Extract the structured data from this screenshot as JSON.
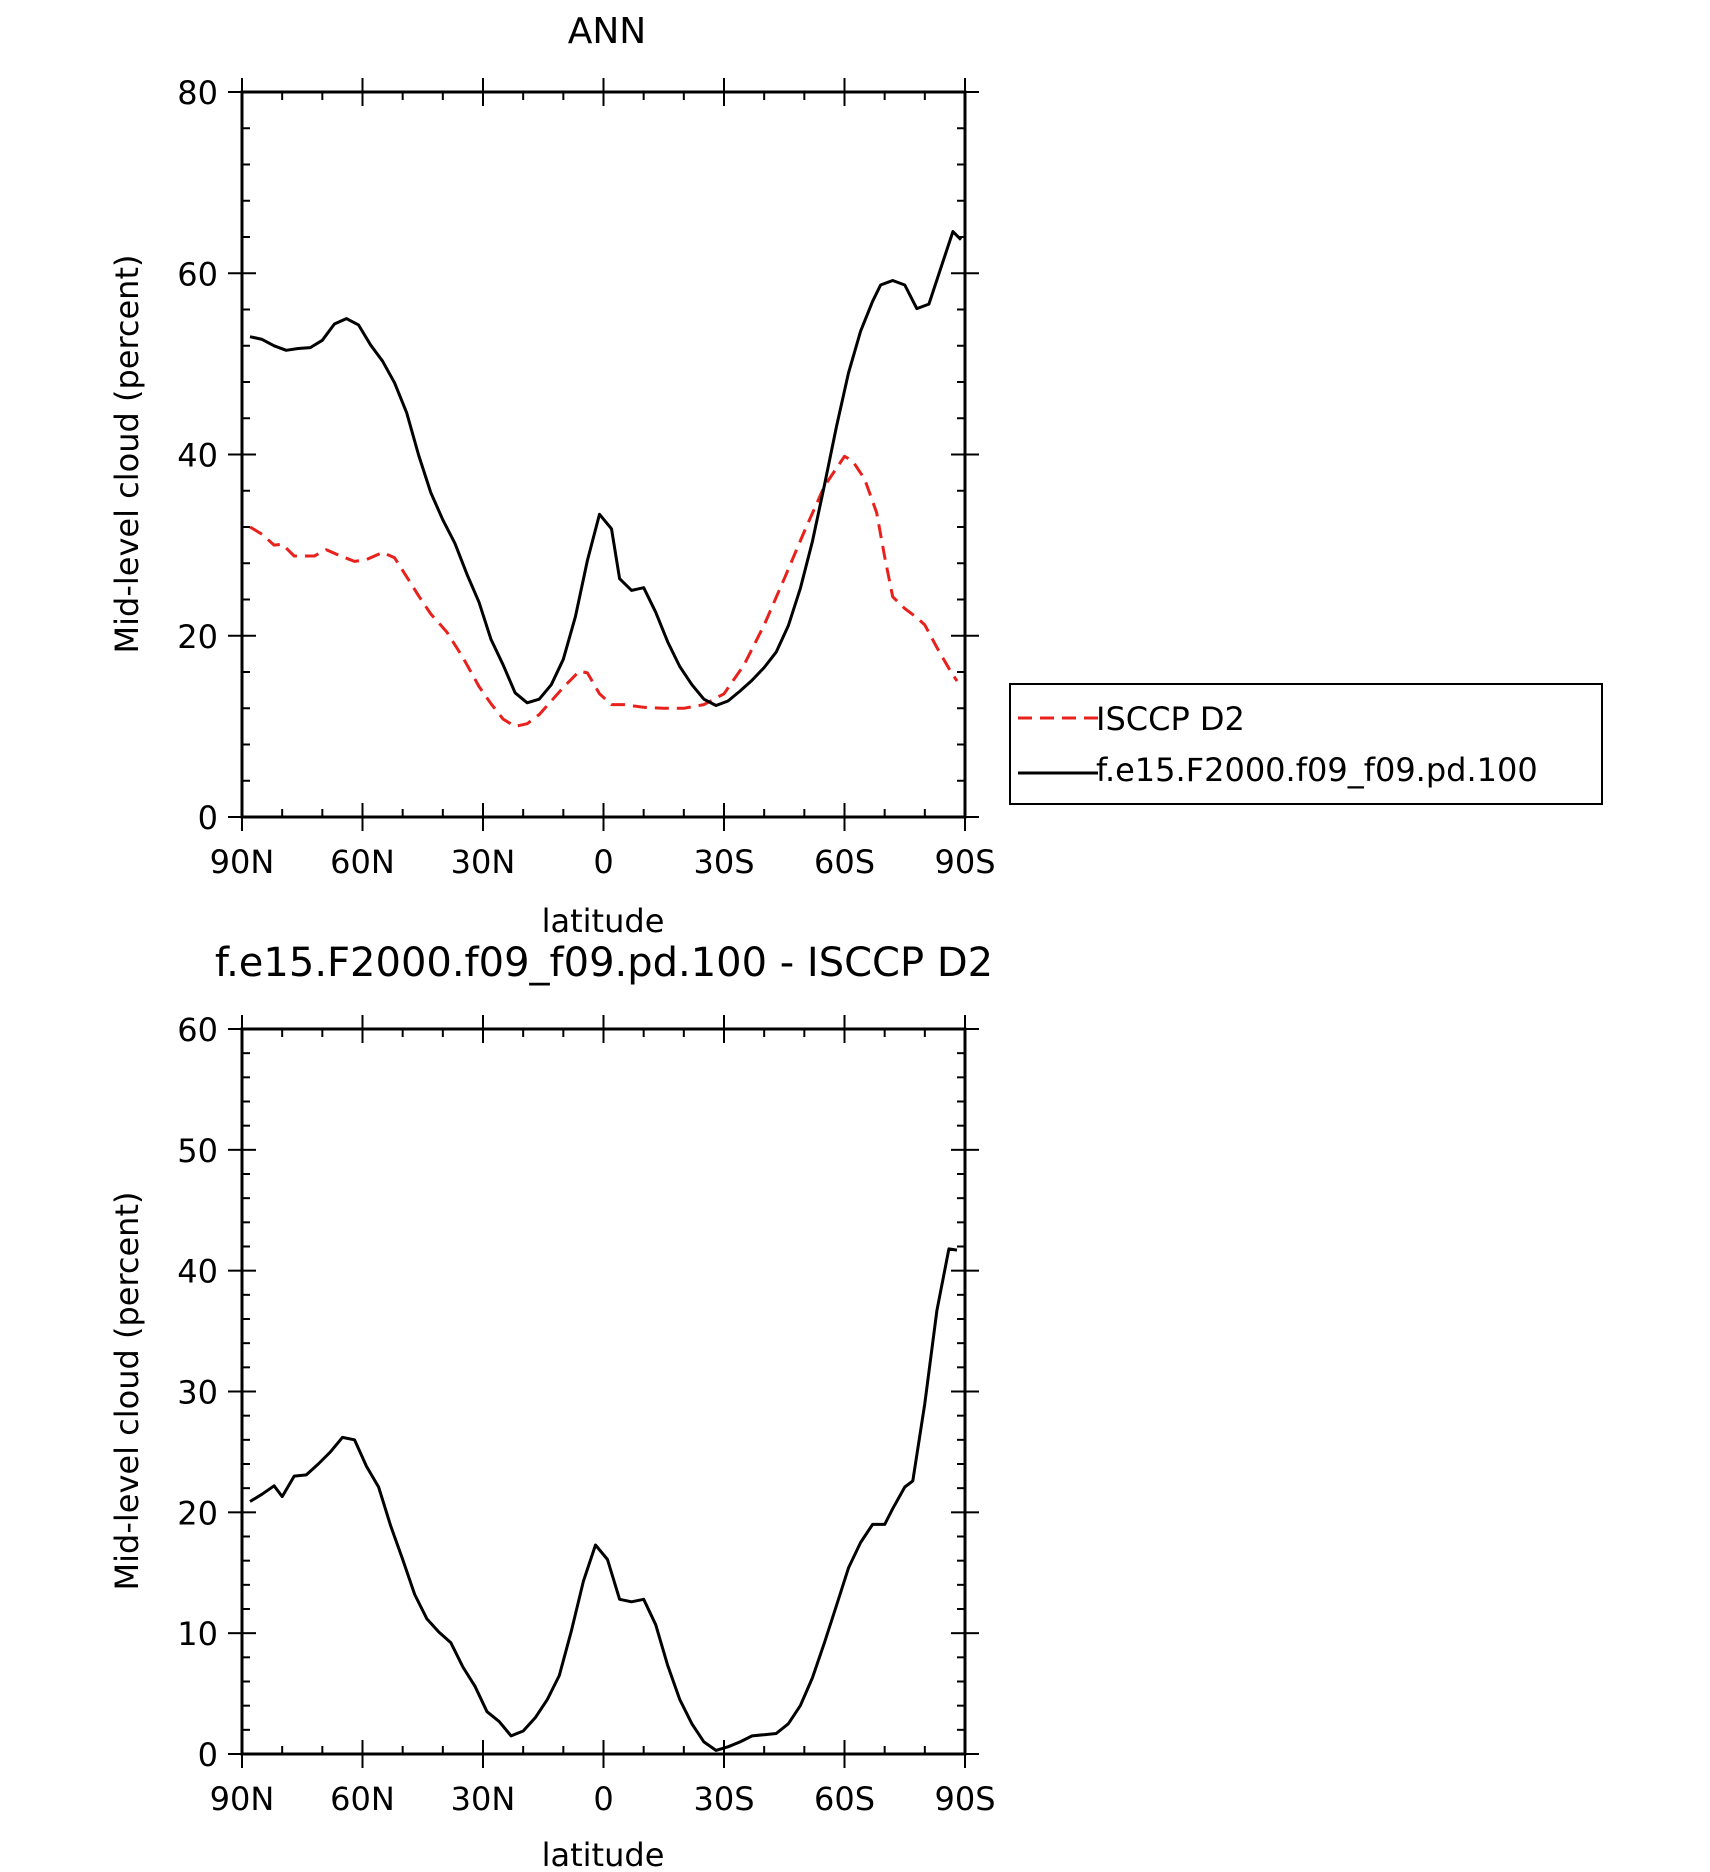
{
  "chart_data": [
    {
      "type": "line",
      "title": "ANN",
      "xlabel": "latitude",
      "ylabel": "Mid-level cloud (percent)",
      "xlim": [
        -90,
        90
      ],
      "ylim": [
        0,
        80
      ],
      "x_ticks": [
        {
          "v": -90,
          "label": "90N"
        },
        {
          "v": -60,
          "label": "60N"
        },
        {
          "v": -30,
          "label": "30N"
        },
        {
          "v": 0,
          "label": "0"
        },
        {
          "v": 30,
          "label": "30S"
        },
        {
          "v": 60,
          "label": "60S"
        },
        {
          "v": 90,
          "label": "90S"
        }
      ],
      "y_ticks": [
        0,
        20,
        40,
        60,
        80
      ],
      "legend": {
        "placement": "right"
      },
      "series": [
        {
          "name": "ISCCP D2",
          "color": "#e8211c",
          "style": "dashed",
          "x": [
            -88,
            -85,
            -82,
            -80,
            -77,
            -72,
            -69,
            -66,
            -62,
            -59,
            -55,
            -52,
            -49,
            -46,
            -43,
            -39,
            -35,
            -31,
            -28,
            -25,
            -22,
            -19,
            -16,
            -13,
            -10,
            -6,
            -4,
            -1,
            2,
            5,
            10,
            15,
            20,
            25,
            30,
            35,
            40,
            45,
            50,
            55,
            60,
            62,
            65,
            68,
            70,
            72,
            75,
            78,
            80,
            83,
            86,
            88
          ],
          "y": [
            32,
            31.2,
            30,
            30.1,
            28.8,
            28.8,
            29.5,
            28.9,
            28.2,
            28.4,
            29.2,
            28.6,
            26.5,
            24.4,
            22.4,
            20.4,
            17.6,
            14.4,
            12.5,
            10.8,
            10,
            10.3,
            11.3,
            12.8,
            14.3,
            16.1,
            15.9,
            13.6,
            12.4,
            12.4,
            12.1,
            12,
            12,
            12.4,
            13.6,
            16.8,
            21.2,
            26.3,
            31.5,
            36.5,
            39.8,
            39.3,
            37.3,
            33.6,
            28.7,
            24.3,
            23,
            22,
            21.2,
            18.7,
            16.4,
            15
          ]
        },
        {
          "name": "f.e15.F2000.f09_f09.pd.100",
          "color": "#000000",
          "style": "solid",
          "x": [
            -88,
            -85,
            -82,
            -79,
            -76,
            -73,
            -70,
            -67,
            -64,
            -61,
            -58,
            -55,
            -52,
            -49,
            -46,
            -43,
            -40,
            -37,
            -34,
            -31,
            -28,
            -25,
            -22,
            -19,
            -16,
            -13,
            -10,
            -7,
            -4,
            -1,
            2,
            4,
            7,
            10,
            13,
            16,
            19,
            22,
            25,
            28,
            31,
            34,
            37,
            40,
            43,
            46,
            49,
            52,
            55,
            58,
            61,
            64,
            67,
            69,
            72,
            75,
            78,
            81,
            84,
            87,
            89
          ],
          "y": [
            53,
            52.7,
            52,
            51.5,
            51.7,
            51.8,
            52.6,
            54.4,
            55,
            54.3,
            52.1,
            50.3,
            47.9,
            44.6,
            39.9,
            35.8,
            32.8,
            30.2,
            26.8,
            23.7,
            19.6,
            16.8,
            13.7,
            12.6,
            13,
            14.6,
            17.4,
            22.1,
            28.3,
            33.4,
            31.8,
            26.3,
            25,
            25.3,
            22.6,
            19.3,
            16.6,
            14.6,
            13,
            12.3,
            12.8,
            13.9,
            15.1,
            16.5,
            18.2,
            21.1,
            25.2,
            30.4,
            36.6,
            43.1,
            49,
            53.6,
            56.9,
            58.7,
            59.2,
            58.7,
            56.1,
            56.6,
            60.6,
            64.6,
            63.7
          ]
        }
      ]
    },
    {
      "type": "line",
      "title": "f.e15.F2000.f09_f09.pd.100 - ISCCP D2",
      "xlabel": "latitude",
      "ylabel": "Mid-level cloud (percent)",
      "xlim": [
        -90,
        90
      ],
      "ylim": [
        0,
        60
      ],
      "x_ticks": [
        {
          "v": -90,
          "label": "90N"
        },
        {
          "v": -60,
          "label": "60N"
        },
        {
          "v": -30,
          "label": "30N"
        },
        {
          "v": 0,
          "label": "0"
        },
        {
          "v": 30,
          "label": "30S"
        },
        {
          "v": 60,
          "label": "60S"
        },
        {
          "v": 90,
          "label": "90S"
        }
      ],
      "y_ticks": [
        0,
        10,
        20,
        30,
        40,
        50,
        60
      ],
      "series": [
        {
          "color": "#000000",
          "style": "solid",
          "x": [
            -88,
            -85,
            -82,
            -80,
            -77,
            -74,
            -71,
            -68,
            -65,
            -62,
            -59,
            -56,
            -53,
            -50,
            -47,
            -44,
            -41,
            -38,
            -35,
            -32,
            -29,
            -26,
            -23,
            -20,
            -17,
            -14,
            -11,
            -8,
            -5,
            -2,
            1,
            4,
            7,
            10,
            13,
            16,
            19,
            22,
            25,
            28,
            31,
            34,
            37,
            40,
            43,
            46,
            49,
            52,
            55,
            58,
            61,
            64,
            67,
            70,
            72,
            75,
            77,
            80,
            83,
            86,
            88
          ],
          "y": [
            20.9,
            21.5,
            22.2,
            21.3,
            23,
            23.1,
            24,
            25,
            26.2,
            26,
            23.8,
            22.1,
            18.9,
            16.1,
            13.2,
            11.2,
            10.1,
            9.2,
            7.2,
            5.6,
            3.5,
            2.7,
            1.5,
            1.9,
            3,
            4.5,
            6.5,
            10.2,
            14.3,
            17.3,
            16.1,
            12.8,
            12.6,
            12.8,
            10.7,
            7.3,
            4.5,
            2.5,
            1,
            0.3,
            0.6,
            1,
            1.5,
            1.6,
            1.7,
            2.5,
            4,
            6.3,
            9.2,
            12.3,
            15.4,
            17.5,
            19,
            19,
            20.3,
            22.1,
            22.6,
            29,
            36.7,
            41.8,
            41.7
          ]
        }
      ]
    }
  ]
}
